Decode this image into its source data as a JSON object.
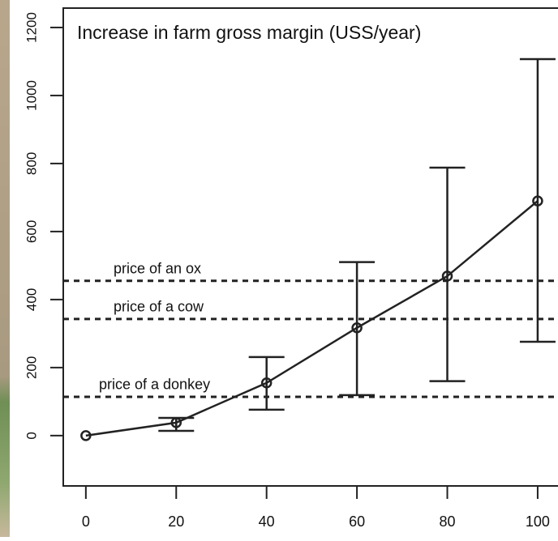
{
  "chart_data": {
    "type": "line",
    "title": "Increase in farm gross margin (USS/year)",
    "x": [
      0,
      20,
      40,
      60,
      80,
      100
    ],
    "values": [
      0,
      38,
      155,
      317,
      469,
      690
    ],
    "lower": [
      0,
      14,
      76,
      119,
      160,
      276
    ],
    "upper": [
      0,
      52,
      231,
      510,
      788,
      1107
    ],
    "color": "#222222",
    "xlim": [
      -5,
      104.5
    ],
    "ylim": [
      -148,
      1257
    ],
    "xticks": [
      0,
      20,
      40,
      60,
      80,
      100
    ],
    "yticks": [
      0,
      200,
      400,
      600,
      800,
      1000,
      1200
    ],
    "reference_lines": [
      {
        "label": "price of an ox",
        "value": 455
      },
      {
        "label": "price of a cow",
        "value": 343
      },
      {
        "label": "price of a donkey",
        "value": 114
      }
    ]
  }
}
